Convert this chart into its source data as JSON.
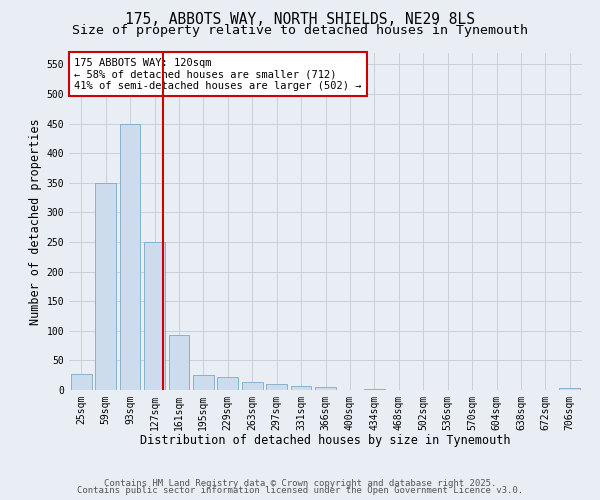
{
  "title_line1": "175, ABBOTS WAY, NORTH SHIELDS, NE29 8LS",
  "title_line2": "Size of property relative to detached houses in Tynemouth",
  "xlabel": "Distribution of detached houses by size in Tynemouth",
  "ylabel": "Number of detached properties",
  "categories": [
    "25sqm",
    "59sqm",
    "93sqm",
    "127sqm",
    "161sqm",
    "195sqm",
    "229sqm",
    "263sqm",
    "297sqm",
    "331sqm",
    "366sqm",
    "400sqm",
    "434sqm",
    "468sqm",
    "502sqm",
    "536sqm",
    "570sqm",
    "604sqm",
    "638sqm",
    "672sqm",
    "706sqm"
  ],
  "values": [
    27,
    350,
    450,
    250,
    93,
    25,
    22,
    13,
    10,
    7,
    5,
    0,
    1,
    0,
    0,
    0,
    0,
    0,
    0,
    0,
    3
  ],
  "bar_color": "#ccdcec",
  "bar_edge_color": "#7aaac8",
  "vline_color": "#cc0000",
  "vline_index": 3,
  "annotation_text": "175 ABBOTS WAY: 120sqm\n← 58% of detached houses are smaller (712)\n41% of semi-detached houses are larger (502) →",
  "annotation_box_facecolor": "#ffffff",
  "annotation_box_edgecolor": "#cc0000",
  "ylim": [
    0,
    570
  ],
  "yticks": [
    0,
    50,
    100,
    150,
    200,
    250,
    300,
    350,
    400,
    450,
    500,
    550
  ],
  "grid_color": "#c8d0da",
  "plot_bg_color": "#e8eef4",
  "fig_bg_color": "#e8eef4",
  "footer_line1": "Contains HM Land Registry data © Crown copyright and database right 2025.",
  "footer_line2": "Contains public sector information licensed under the Open Government Licence v3.0.",
  "title_fontsize": 10.5,
  "subtitle_fontsize": 9.5,
  "axis_label_fontsize": 8.5,
  "tick_fontsize": 7,
  "annotation_fontsize": 7.5,
  "footer_fontsize": 6.5
}
